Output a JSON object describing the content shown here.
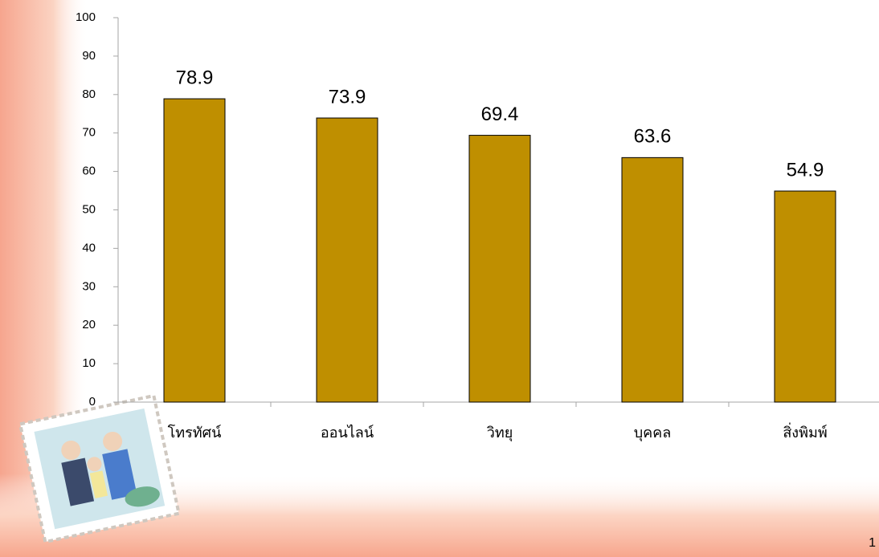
{
  "chart_data": {
    "type": "bar",
    "categories": [
      "โทรทัศน์",
      "ออนไลน์",
      "วิทยุ",
      "บุคคล",
      "สิ่งพิมพ์"
    ],
    "values": [
      78.9,
      73.9,
      69.4,
      63.6,
      54.9
    ],
    "color": "#bf8f00",
    "ylim": [
      0,
      100
    ],
    "yticks": [
      0,
      10,
      20,
      30,
      40,
      50,
      60,
      70,
      80,
      90,
      100
    ],
    "grid": false
  },
  "slide_number": "1"
}
